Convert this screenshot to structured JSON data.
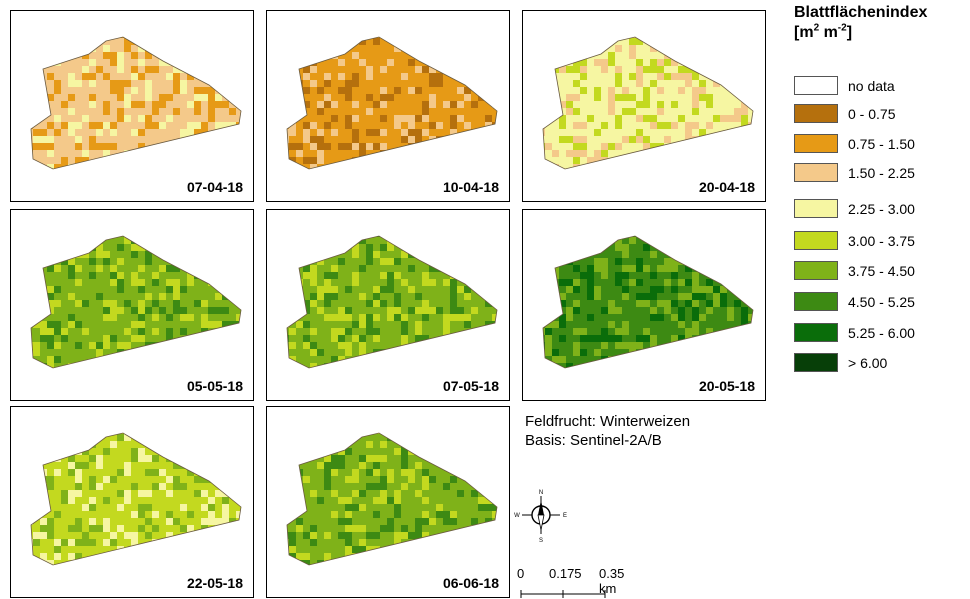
{
  "legend": {
    "title": "Blattflächenindex",
    "unit_base": "[m",
    "unit_exp1": "2",
    "unit_mid": " m",
    "unit_exp2": "-2",
    "unit_end": "]",
    "classes": [
      {
        "label": "no data",
        "color": "#ffffff"
      },
      {
        "label": "0 - 0.75",
        "color": "#b5700d"
      },
      {
        "label": "0.75 - 1.50",
        "color": "#e69a16"
      },
      {
        "label": "1.50 - 2.25",
        "color": "#f4c98a"
      },
      {
        "label": "2.25 - 3.00",
        "color": "#f6f6a2"
      },
      {
        "label": "3.00 - 3.75",
        "color": "#c3d91f"
      },
      {
        "label": "3.75 - 4.50",
        "color": "#7fb219"
      },
      {
        "label": "4.50 - 5.25",
        "color": "#3d8a13"
      },
      {
        "label": "5.25 - 6.00",
        "color": "#0a6d0a"
      },
      {
        "label": "> 6.00",
        "color": "#073f08"
      }
    ]
  },
  "panels": [
    {
      "date": "07-04-18",
      "dominant_class": "1.50 - 2.25"
    },
    {
      "date": "10-04-18",
      "dominant_class": "0.75 - 1.50"
    },
    {
      "date": "20-04-18",
      "dominant_class": "2.25 - 3.00"
    },
    {
      "date": "05-05-18",
      "dominant_class": "3.75 - 4.50"
    },
    {
      "date": "07-05-18",
      "dominant_class": "3.75 - 4.50"
    },
    {
      "date": "20-05-18",
      "dominant_class": "4.50 - 5.25"
    },
    {
      "date": "22-05-18",
      "dominant_class": "3.00 - 3.75"
    },
    {
      "date": "06-06-18",
      "dominant_class": "3.75 - 4.50"
    }
  ],
  "info": {
    "crop": "Feldfrucht: Winterweizen",
    "basis": "Basis: Sentinel-2A/B"
  },
  "compass": {
    "n": "N",
    "s": "S",
    "e": "E",
    "w": "W"
  },
  "scale": {
    "t0": "0",
    "t1": "0.175",
    "t2": "0.35 km"
  }
}
